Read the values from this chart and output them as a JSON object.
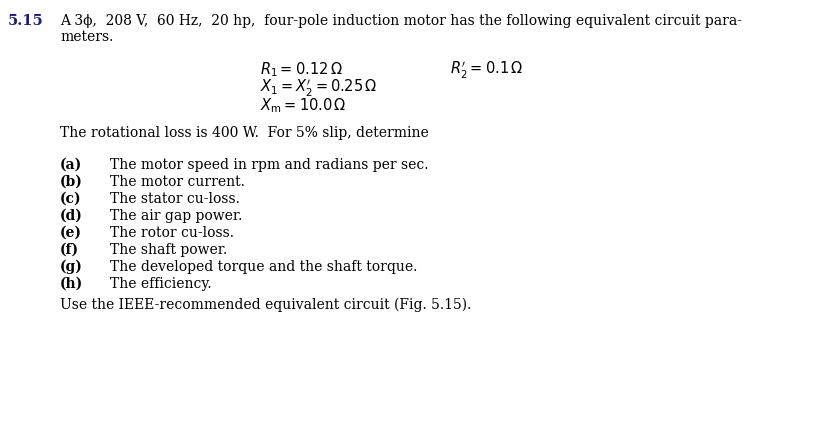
{
  "problem_number": "5.15",
  "intro_line1": "A 3ϕ,  208 V,  60 Hz,  20 hp,  four-pole induction motor has the following equivalent circuit para-",
  "intro_line2": "meters.",
  "eq1_left": "$R_1 = 0.12\\,\\Omega$",
  "eq1_right": "$R_2^{\\prime} = 0.1\\,\\Omega$",
  "eq2": "$X_1 = X_2^{\\prime} = 0.25\\,\\Omega$",
  "eq3": "$X_{\\mathrm{m}} = 10.0\\,\\Omega$",
  "rotational_line": "The rotational loss is 400 W.  For 5% slip, determine",
  "items": [
    [
      "(a)",
      "The motor speed in rpm and radians per sec."
    ],
    [
      "(b)",
      "The motor current."
    ],
    [
      "(c)",
      "The stator cu-loss."
    ],
    [
      "(d)",
      "The air gap power."
    ],
    [
      "(e)",
      "The rotor cu-loss."
    ],
    [
      "(f)",
      "The shaft power."
    ],
    [
      "(g)",
      "The developed torque and the shaft torque."
    ],
    [
      "(h)",
      "The efficiency."
    ]
  ],
  "footer": "Use the IEEE-recommended equivalent circuit (Fig. 5.15).",
  "bg_color": "#ffffff",
  "text_color": "#000000",
  "problem_color": "#1a1a8c",
  "body_fontsize": 10.0,
  "problem_fontsize": 10.5,
  "eq_fontsize": 10.5
}
